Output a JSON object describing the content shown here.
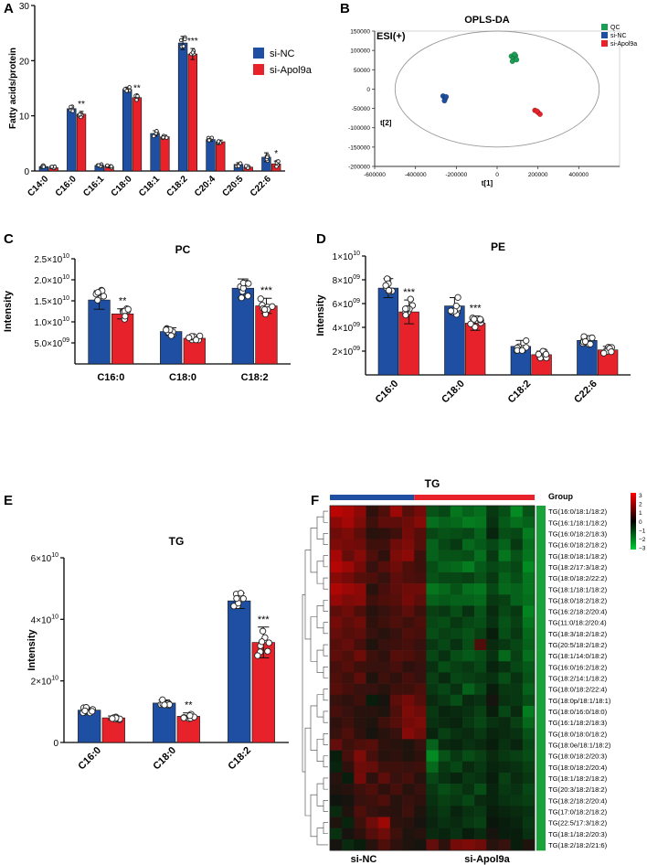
{
  "colors": {
    "ctrl": "#1f4fa3",
    "treat": "#e8222a",
    "qc": "#1a9e55",
    "ellipse": "#999999"
  },
  "panels": {
    "A": "A",
    "B": "B",
    "C": "C",
    "D": "D",
    "E": "E",
    "F": "F"
  },
  "chart_data": [
    {
      "id": "A",
      "type": "bar",
      "title": "",
      "xlabel": "",
      "ylabel": "Fatty acids/protein",
      "ylim": [
        0,
        30
      ],
      "yticks": [
        "0",
        "10",
        "20",
        "30"
      ],
      "categories": [
        "C14:0",
        "C16:0",
        "C16:1",
        "C18:0",
        "C18:1",
        "C18:2",
        "C20:4",
        "C20:5",
        "C22:6"
      ],
      "series": [
        {
          "name": "si-NC",
          "values": [
            0.8,
            11.3,
            1.0,
            14.8,
            6.8,
            23.2,
            5.7,
            1.2,
            2.5
          ],
          "errors": [
            0.2,
            0.5,
            0.2,
            0.4,
            0.5,
            1.2,
            0.3,
            0.3,
            0.8
          ]
        },
        {
          "name": "si-Apol9a",
          "values": [
            0.6,
            10.3,
            0.8,
            13.3,
            6.2,
            21.2,
            5.3,
            0.7,
            1.3
          ],
          "errors": [
            0.2,
            0.5,
            0.2,
            0.4,
            0.3,
            1.0,
            0.3,
            0.2,
            0.5
          ]
        }
      ],
      "significance": [
        "",
        "**",
        "",
        "**",
        "",
        "***",
        "",
        "",
        "*"
      ]
    },
    {
      "id": "B",
      "type": "scatter",
      "title": "OPLS-DA",
      "mode_label": "ESI(+)",
      "xlabel": "t[1]",
      "ylabel": "t[2]",
      "xlim": [
        -600000,
        600000
      ],
      "ylim": [
        -200000,
        150000
      ],
      "xticks": [
        "-600000",
        "-400000",
        "-200000",
        "0",
        "200000",
        "400000"
      ],
      "yticks": [
        "150000",
        "100000",
        "50000",
        "0",
        "-50000",
        "-100000",
        "-150000",
        "-200000"
      ],
      "legend": [
        "QC",
        "si-NC",
        "si-Apol9a"
      ],
      "points": [
        {
          "group": "QC",
          "x": 70000,
          "y": 85000
        },
        {
          "group": "QC",
          "x": 80000,
          "y": 80000
        },
        {
          "group": "QC",
          "x": 90000,
          "y": 86000
        },
        {
          "group": "QC",
          "x": 75000,
          "y": 72000
        },
        {
          "group": "QC",
          "x": 95000,
          "y": 76000
        },
        {
          "group": "QC",
          "x": 85000,
          "y": 90000
        },
        {
          "group": "si-NC",
          "x": -265000,
          "y": -18000
        },
        {
          "group": "si-NC",
          "x": -255000,
          "y": -25000
        },
        {
          "group": "si-NC",
          "x": -258000,
          "y": -30000
        },
        {
          "group": "si-NC",
          "x": -250000,
          "y": -20000
        },
        {
          "group": "si-Apol9a",
          "x": 185000,
          "y": -55000
        },
        {
          "group": "si-Apol9a",
          "x": 200000,
          "y": -60000
        },
        {
          "group": "si-Apol9a",
          "x": 210000,
          "y": -65000
        },
        {
          "group": "si-Apol9a",
          "x": 195000,
          "y": -57000
        }
      ]
    },
    {
      "id": "C",
      "type": "bar",
      "title": "PC",
      "ylabel": "Intensity",
      "xlabel": "",
      "ylim": [
        0,
        25000000000.0
      ],
      "yticks": [
        {
          "v": 5000000000.0,
          "m": "5.0×10",
          "e": "09"
        },
        {
          "v": 10000000000.0,
          "m": "1.0×10",
          "e": "10"
        },
        {
          "v": 15000000000.0,
          "m": "1.5×10",
          "e": "10"
        },
        {
          "v": 20000000000.0,
          "m": "2.0×10",
          "e": "10"
        },
        {
          "v": 25000000000.0,
          "m": "2.5×10",
          "e": "10"
        }
      ],
      "categories": [
        "C16:0",
        "C18:0",
        "C18:2"
      ],
      "series": [
        {
          "name": "si-NC",
          "values": [
            15200000000.0,
            7700000000.0,
            18000000000.0
          ],
          "errors": [
            2200000000.0,
            900000000.0,
            2200000000.0
          ]
        },
        {
          "name": "si-Apol9a",
          "values": [
            11900000000.0,
            6100000000.0,
            13800000000.0
          ],
          "errors": [
            1200000000.0,
            500000000.0,
            1800000000.0
          ]
        }
      ],
      "significance": [
        "**",
        "",
        "***"
      ]
    },
    {
      "id": "D",
      "type": "bar",
      "title": "PE",
      "ylabel": "Intensity",
      "xlabel": "",
      "ylim": [
        0,
        10000000000.0
      ],
      "yticks": [
        {
          "v": 2000000000.0,
          "m": "2×10",
          "e": "09"
        },
        {
          "v": 4000000000.0,
          "m": "4×10",
          "e": "09"
        },
        {
          "v": 6000000000.0,
          "m": "6×10",
          "e": "09"
        },
        {
          "v": 8000000000.0,
          "m": "8×10",
          "e": "09"
        },
        {
          "v": 10000000000.0,
          "m": "1×10",
          "e": "10"
        }
      ],
      "categories": [
        "C16:0",
        "C18:0",
        "C18:2",
        "C22:6"
      ],
      "series": [
        {
          "name": "si-NC",
          "values": [
            7300000000.0,
            5800000000.0,
            2400000000.0,
            2900000000.0
          ],
          "errors": [
            800000000.0,
            700000000.0,
            500000000.0,
            400000000.0
          ]
        },
        {
          "name": "si-Apol9a",
          "values": [
            5300000000.0,
            4350000000.0,
            1700000000.0,
            2100000000.0
          ],
          "errors": [
            1000000000.0,
            600000000.0,
            300000000.0,
            300000000.0
          ]
        }
      ],
      "significance": [
        "***",
        "***",
        "",
        ""
      ]
    },
    {
      "id": "E",
      "type": "bar",
      "title": "TG",
      "ylabel": "Intensity",
      "xlabel": "",
      "ylim": [
        0,
        60000000000.0
      ],
      "yticks": [
        {
          "v": 0,
          "m": "0",
          "e": ""
        },
        {
          "v": 20000000000.0,
          "m": "2×10",
          "e": "10"
        },
        {
          "v": 40000000000.0,
          "m": "4×10",
          "e": "10"
        },
        {
          "v": 60000000000.0,
          "m": "6×10",
          "e": "10"
        }
      ],
      "categories": [
        "C16:0",
        "C18:0",
        "C18:2"
      ],
      "series": [
        {
          "name": "si-NC",
          "values": [
            10500000000.0,
            12800000000.0,
            46000000000.0
          ],
          "errors": [
            800000000.0,
            1000000000.0,
            2500000000.0
          ]
        },
        {
          "name": "si-Apol9a",
          "values": [
            8000000000.0,
            8500000000.0,
            32500000000.0
          ],
          "errors": [
            600000000.0,
            1100000000.0,
            5000000000.0
          ]
        }
      ],
      "significance": [
        "",
        "**",
        "***"
      ]
    },
    {
      "id": "F",
      "type": "heatmap",
      "title": "TG",
      "group_label": "Group",
      "column_groups": [
        "si-NC",
        "si-Apol9a"
      ],
      "colorbar_ticks": [
        "3",
        "2",
        "1",
        "0",
        "−1",
        "−2",
        "−3"
      ],
      "rows": [
        "TG(16:0/18:1/18:2)",
        "TG(16:1/18:1/18:2)",
        "TG(16:0/18:2/18:3)",
        "TG(16:0/18:2/18:2)",
        "TG(18:0/18:1/18:2)",
        "TG(18:2/17:3/18:2)",
        "TG(18:0/18:2/22:2)",
        "TG(18:1/18:1/18:2)",
        "TG(18:0/18:2/18:2)",
        "TG(16:2/18:2/20:4)",
        "TG(11:0/18:2/20:4)",
        "TG(18:3/18:2/18:2)",
        "TG(20:5/18:2/18:2)",
        "TG(18:1/14:0/18:2)",
        "TG(16:0/16:2/18:2)",
        "TG(18:2/14:1/18:2)",
        "TG(18:0/18:2/22:4)",
        "TG(18:0p/18:1/18:1)",
        "TG(18:0/16:0/18:0)",
        "TG(16:1/18:2/18:3)",
        "TG(18:0/18:0/18:2)",
        "TG(18:0e/18:1/18:2)",
        "TG(18:0/18:2/20:3)",
        "TG(18:0/18:2/20:4)",
        "TG(18:1/18:2/18:2)",
        "TG(20:3/18:2/18:2)",
        "TG(18:2/18:2/20:4)",
        "TG(17:0/18:2/18:2)",
        "TG(22:5/17:3/18:2)",
        "TG(18:1/18:2/20:3)",
        "TG(18:2/18:2/21:6)"
      ],
      "values": [
        [
          2.2,
          2.0,
          1.6,
          0.4,
          0.8,
          1.8,
          0.9,
          1.3,
          -1.0,
          -0.8,
          -1.5,
          -1.2,
          -1.4,
          -0.6,
          -0.9,
          -1.8,
          -1.0
        ],
        [
          1.6,
          1.9,
          1.4,
          0.6,
          1.0,
          1.0,
          1.2,
          1.5,
          -1.4,
          -1.2,
          -1.3,
          -1.6,
          -1.5,
          -0.5,
          -1.1,
          -1.4,
          -1.2
        ],
        [
          1.2,
          1.4,
          1.0,
          0.3,
          0.4,
          0.6,
          1.3,
          0.9,
          -0.8,
          -1.0,
          -0.9,
          -0.8,
          -1.2,
          -0.3,
          -0.9,
          -0.8,
          -1.6
        ],
        [
          1.4,
          1.3,
          1.2,
          0.6,
          0.6,
          1.2,
          1.4,
          0.9,
          -1.2,
          -0.8,
          -0.6,
          -1.3,
          -1.1,
          -0.8,
          -1.2,
          -0.6,
          -1.4
        ],
        [
          1.9,
          1.1,
          1.5,
          0.8,
          0.4,
          1.4,
          1.6,
          0.6,
          -1.2,
          -1.0,
          -1.0,
          -0.9,
          -1.4,
          -0.6,
          -1.5,
          -1.0,
          -1.5
        ],
        [
          2.1,
          1.8,
          1.3,
          0.5,
          0.9,
          1.2,
          0.8,
          0.6,
          -0.9,
          -1.2,
          -1.3,
          -1.6,
          -1.1,
          -0.8,
          -1.0,
          -0.8,
          -1.8
        ],
        [
          1.5,
          1.3,
          0.9,
          0.8,
          0.5,
          1.0,
          0.8,
          0.7,
          -1.0,
          -0.8,
          -0.8,
          -0.7,
          -1.0,
          -0.6,
          -1.2,
          -0.9,
          -1.5
        ],
        [
          2.0,
          1.8,
          1.6,
          0.3,
          0.7,
          1.0,
          1.2,
          1.2,
          -1.5,
          -1.3,
          -1.0,
          -1.4,
          -1.5,
          -0.8,
          -1.3,
          -1.2,
          -1.5
        ],
        [
          1.7,
          1.4,
          1.5,
          0.6,
          0.8,
          0.9,
          1.3,
          1.0,
          -1.2,
          -1.1,
          -1.2,
          -1.2,
          -1.3,
          -0.6,
          -0.7,
          -1.2,
          -1.4
        ],
        [
          1.0,
          1.2,
          0.8,
          0.3,
          0.5,
          0.7,
          1.0,
          0.6,
          -0.7,
          -0.6,
          -0.9,
          -0.5,
          -1.0,
          -0.4,
          -0.8,
          -0.6,
          -1.7
        ],
        [
          1.3,
          1.0,
          1.2,
          0.4,
          0.6,
          0.8,
          0.6,
          0.8,
          -0.8,
          -0.9,
          -0.6,
          -0.8,
          -0.9,
          -0.5,
          -1.0,
          -0.7,
          -1.5
        ],
        [
          1.1,
          0.9,
          1.0,
          0.5,
          0.3,
          0.5,
          0.8,
          0.7,
          -0.9,
          -0.7,
          -0.8,
          -1.0,
          -0.7,
          -0.2,
          -0.9,
          -0.6,
          -1.3
        ],
        [
          0.9,
          1.1,
          0.7,
          0.2,
          0.5,
          0.6,
          0.7,
          0.5,
          -0.6,
          -0.8,
          -0.5,
          -0.9,
          0.8,
          -0.4,
          -0.6,
          -0.8,
          -1.2
        ],
        [
          1.0,
          0.8,
          1.2,
          0.6,
          0.4,
          0.9,
          0.8,
          0.6,
          -0.8,
          -0.5,
          -0.9,
          -1.1,
          -0.9,
          -0.5,
          -1.3,
          -0.7,
          -1.4
        ],
        [
          0.7,
          0.9,
          0.6,
          0.5,
          0.5,
          0.7,
          0.4,
          0.5,
          -0.5,
          -0.9,
          -0.7,
          -0.6,
          -0.8,
          -0.3,
          -0.5,
          -0.8,
          -1.1
        ],
        [
          0.8,
          0.6,
          1.0,
          0.2,
          0.6,
          0.4,
          0.7,
          0.5,
          -0.7,
          -0.4,
          -0.8,
          -0.7,
          -0.6,
          -0.5,
          -0.9,
          -0.5,
          -1.0
        ],
        [
          0.9,
          0.7,
          0.5,
          0.5,
          0.3,
          0.6,
          0.6,
          0.8,
          -0.6,
          -0.8,
          -0.5,
          -1.2,
          -0.8,
          -0.2,
          -0.6,
          -0.6,
          -1.2
        ],
        [
          0.5,
          0.4,
          0.6,
          -0.2,
          0.1,
          1.0,
          1.3,
          0.9,
          -0.4,
          -0.6,
          -0.9,
          -0.4,
          -0.5,
          0.1,
          -0.5,
          -0.6,
          -0.9
        ],
        [
          0.7,
          0.5,
          0.3,
          0.3,
          0.2,
          0.8,
          1.4,
          1.2,
          -0.6,
          -0.3,
          -0.4,
          -0.5,
          -0.7,
          -0.2,
          -0.8,
          -0.4,
          -1.6
        ],
        [
          0.4,
          0.6,
          0.3,
          0.2,
          0.6,
          0.9,
          1.3,
          1.4,
          -0.5,
          -0.4,
          -0.3,
          -0.6,
          -0.8,
          -0.5,
          -0.4,
          -0.7,
          -1.3
        ],
        [
          0.5,
          0.8,
          0.4,
          0.1,
          0.3,
          0.5,
          1.5,
          1.2,
          -0.3,
          -0.7,
          -0.5,
          -0.4,
          -0.6,
          -0.3,
          -0.4,
          -0.5,
          -1.0
        ],
        [
          1.1,
          0.6,
          0.8,
          0.9,
          0.4,
          0.3,
          0.2,
          0.5,
          -1.2,
          -0.4,
          -0.3,
          -0.5,
          -0.4,
          -0.2,
          -0.5,
          -0.3,
          -0.8
        ],
        [
          -0.2,
          0.7,
          1.4,
          0.7,
          0.3,
          0.4,
          0.2,
          0.4,
          -1.8,
          -1.0,
          -0.6,
          -0.9,
          -0.7,
          -0.4,
          -0.6,
          -0.7,
          -0.9
        ],
        [
          -0.3,
          0.4,
          1.2,
          1.1,
          0.6,
          0.6,
          0.5,
          0.6,
          -1.3,
          -0.6,
          -0.8,
          -0.4,
          -0.6,
          -0.3,
          -0.4,
          -0.5,
          -0.7
        ],
        [
          0.3,
          -0.2,
          1.3,
          0.4,
          1.0,
          0.5,
          0.7,
          0.3,
          -0.8,
          -0.5,
          -0.3,
          -0.6,
          -0.5,
          -0.2,
          -0.7,
          -0.4,
          -0.6
        ],
        [
          0.2,
          0.3,
          0.6,
          0.8,
          0.4,
          0.7,
          0.3,
          0.5,
          -0.6,
          -0.9,
          -0.7,
          -0.5,
          -0.9,
          -0.3,
          -0.6,
          -0.5,
          -0.8
        ],
        [
          0.0,
          0.1,
          0.5,
          0.6,
          0.8,
          0.3,
          0.5,
          0.4,
          -0.5,
          -0.7,
          -0.6,
          -0.8,
          -0.4,
          -0.3,
          -0.5,
          -0.6,
          -0.7
        ],
        [
          -0.4,
          0.2,
          0.8,
          0.5,
          0.4,
          0.3,
          0.6,
          0.2,
          -0.4,
          -0.6,
          -0.3,
          -0.5,
          -0.6,
          -0.2,
          -0.3,
          -0.4,
          -0.5
        ],
        [
          0.2,
          -0.3,
          0.6,
          1.2,
          1.8,
          0.4,
          0.3,
          0.1,
          -0.3,
          -0.5,
          -0.4,
          -0.6,
          -0.7,
          -0.1,
          -0.2,
          -0.3,
          -0.6
        ],
        [
          -0.5,
          0.1,
          0.4,
          0.9,
          1.2,
          0.6,
          0.2,
          0.3,
          -0.4,
          -0.3,
          -0.5,
          -0.2,
          -0.4,
          0.1,
          -0.2,
          -0.2,
          -0.5
        ],
        [
          0.1,
          -0.4,
          -0.2,
          0.3,
          0.8,
          0.4,
          0.2,
          0.1,
          1.1,
          0.4,
          1.3,
          1.4,
          1.2,
          0.3,
          0.5,
          -0.2,
          0.2
        ]
      ]
    }
  ]
}
